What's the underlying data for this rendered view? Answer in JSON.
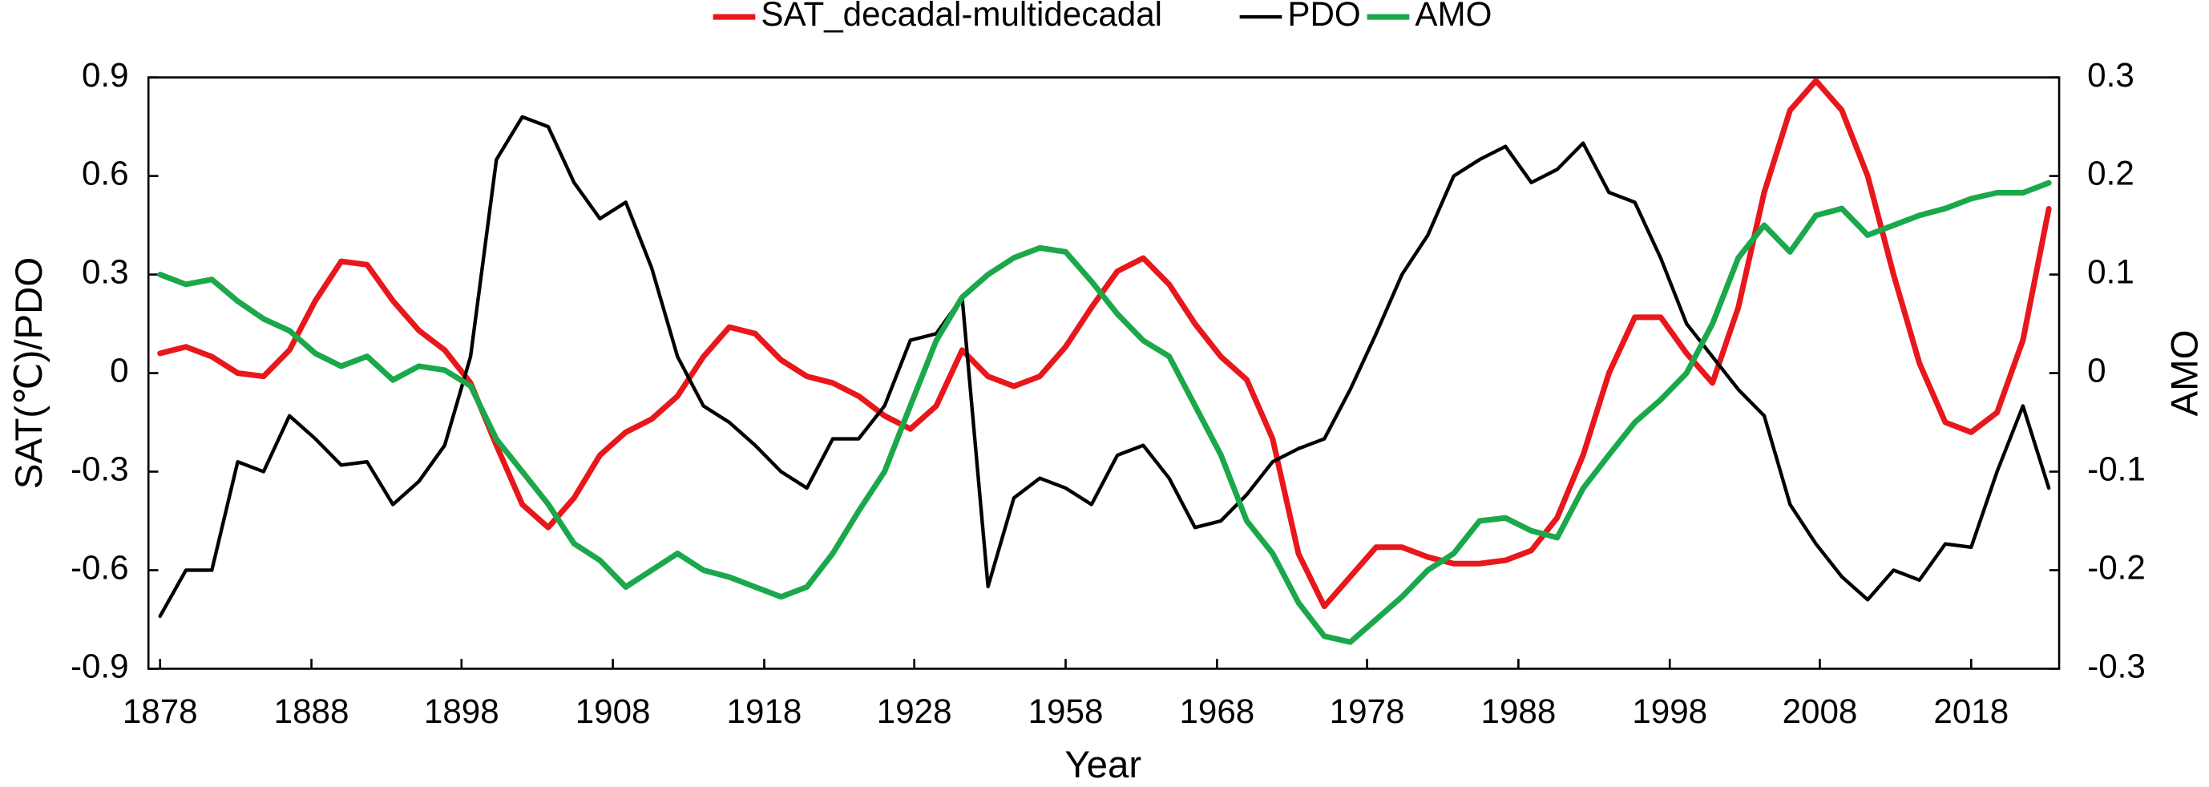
{
  "chart_data": {
    "type": "line",
    "x_label": "Year",
    "y_label": "SAT(℃)/PDO",
    "y2_label": "AMO",
    "x": [
      1878,
      1880,
      1882,
      1884,
      1886,
      1888,
      1890,
      1892,
      1894,
      1896,
      1898,
      1900,
      1902,
      1904,
      1906,
      1908,
      1910,
      1912,
      1914,
      1916,
      1918,
      1920,
      1922,
      1924,
      1926,
      1928,
      1930,
      1932,
      1934,
      1936,
      1938,
      1940,
      1942,
      1944,
      1946,
      1948,
      1950,
      1952,
      1954,
      1956,
      1958,
      1960,
      1962,
      1964,
      1966,
      1968,
      1970,
      1972,
      1974,
      1976,
      1978,
      1980,
      1982,
      1984,
      1986,
      1988,
      1990,
      1992,
      1994,
      1996,
      1998,
      2000,
      2002,
      2004,
      2006,
      2008,
      2010,
      2012,
      2014,
      2016,
      2018,
      2020,
      2022,
      2024
    ],
    "series": [
      {
        "name": "SAT_decadal-multidecadal",
        "color": "#e8171b",
        "width": 4,
        "values": [
          0.06,
          0.08,
          0.05,
          0.0,
          -0.01,
          0.07,
          0.22,
          0.34,
          0.33,
          0.22,
          0.13,
          0.07,
          -0.03,
          -0.22,
          -0.4,
          -0.47,
          -0.38,
          -0.25,
          -0.18,
          -0.14,
          -0.07,
          0.05,
          0.14,
          0.12,
          0.04,
          -0.01,
          -0.03,
          -0.07,
          -0.13,
          -0.17,
          -0.1,
          0.07,
          -0.01,
          -0.04,
          -0.01,
          0.08,
          0.2,
          0.31,
          0.35,
          0.27,
          0.15,
          0.05,
          -0.02,
          -0.2,
          -0.55,
          -0.71,
          -0.62,
          -0.53,
          -0.53,
          -0.56,
          -0.58,
          -0.58,
          -0.57,
          -0.54,
          -0.44,
          -0.25,
          0.0,
          0.17,
          0.17,
          0.06,
          -0.03,
          0.2,
          0.55,
          0.8,
          0.89,
          0.8,
          0.6,
          0.3,
          0.03,
          -0.15,
          -0.18,
          -0.12,
          0.1,
          0.5
        ]
      },
      {
        "name": "PDO",
        "color": "#000000",
        "width": 2.5,
        "values": [
          -0.74,
          -0.6,
          -0.6,
          -0.27,
          -0.3,
          -0.13,
          -0.2,
          -0.28,
          -0.27,
          -0.4,
          -0.33,
          -0.22,
          0.05,
          0.65,
          0.78,
          0.75,
          0.58,
          0.47,
          0.52,
          0.32,
          0.05,
          -0.1,
          -0.15,
          -0.22,
          -0.3,
          -0.35,
          -0.2,
          -0.2,
          -0.1,
          0.1,
          0.12,
          0.23,
          -0.65,
          -0.38,
          -0.32,
          -0.35,
          -0.4,
          -0.25,
          -0.22,
          -0.32,
          -0.47,
          -0.45,
          -0.37,
          -0.27,
          -0.23,
          -0.2,
          -0.05,
          0.12,
          0.3,
          0.42,
          0.6,
          0.65,
          0.69,
          0.58,
          0.62,
          0.7,
          0.55,
          0.52,
          0.35,
          0.15,
          0.05,
          -0.05,
          -0.13,
          -0.4,
          -0.52,
          -0.62,
          -0.69,
          -0.6,
          -0.63,
          -0.52,
          -0.53,
          -0.3,
          -0.1,
          -0.35
        ]
      },
      {
        "name": "AMO",
        "color": "#1aa84b",
        "width": 4,
        "axis": "y2",
        "values": [
          0.1,
          0.09,
          0.095,
          0.073,
          0.055,
          0.043,
          0.02,
          0.007,
          0.017,
          -0.007,
          0.007,
          0.003,
          -0.013,
          -0.067,
          -0.1,
          -0.133,
          -0.173,
          -0.19,
          -0.217,
          -0.2,
          -0.183,
          -0.2,
          -0.207,
          -0.217,
          -0.227,
          -0.217,
          -0.183,
          -0.14,
          -0.1,
          -0.033,
          0.033,
          0.077,
          0.1,
          0.117,
          0.127,
          0.123,
          0.093,
          0.06,
          0.033,
          0.017,
          -0.033,
          -0.083,
          -0.15,
          -0.183,
          -0.233,
          -0.267,
          -0.273,
          -0.25,
          -0.227,
          -0.2,
          -0.183,
          -0.15,
          -0.147,
          -0.16,
          -0.167,
          -0.117,
          -0.083,
          -0.05,
          -0.027,
          0.0,
          0.05,
          0.117,
          0.15,
          0.123,
          0.16,
          0.167,
          0.14,
          0.15,
          0.16,
          0.167,
          0.177,
          0.183,
          0.183,
          0.193
        ]
      }
    ],
    "xlim": [
      1877.1,
      2024.8
    ],
    "xticks": [
      {
        "value": 1878,
        "label": "1878"
      },
      {
        "value": 1889.7,
        "label": "1888"
      },
      {
        "value": 1901.3,
        "label": "1898"
      },
      {
        "value": 1913,
        "label": "1908"
      },
      {
        "value": 1924.7,
        "label": "1918"
      },
      {
        "value": 1936.3,
        "label": "1928"
      },
      {
        "value": 1948,
        "label": "1958"
      },
      {
        "value": 1959.7,
        "label": "1968"
      },
      {
        "value": 1971.3,
        "label": "1978"
      },
      {
        "value": 1983,
        "label": "1988"
      },
      {
        "value": 1994.7,
        "label": "1998"
      },
      {
        "value": 2006.3,
        "label": "2008"
      },
      {
        "value": 2018,
        "label": "2018"
      }
    ],
    "ylim": [
      -0.9,
      0.9
    ],
    "yticks": [
      -0.9,
      -0.6,
      -0.3,
      0,
      0.3,
      0.6,
      0.9
    ],
    "y2lim": [
      -0.3,
      0.3
    ],
    "y2ticks": [
      -0.3,
      -0.2,
      -0.1,
      0,
      0.1,
      0.2,
      0.3
    ],
    "legend": "top"
  }
}
